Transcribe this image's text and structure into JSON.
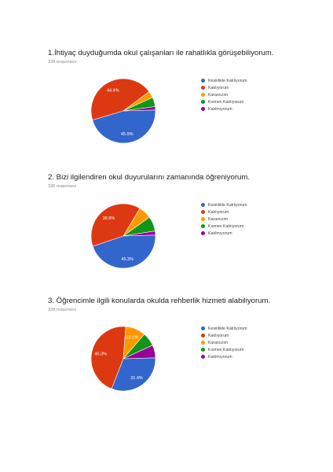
{
  "colors": [
    "#3366cc",
    "#dc3912",
    "#ff9900",
    "#109618",
    "#990099"
  ],
  "chart_data": [
    {
      "type": "pie",
      "title": "1.İhtiyaç duyduğumda okul çalışanları ile rahatlıkla görüşebiliyorum.",
      "responses": "338 responses",
      "categories": [
        "Kesinlikle Katılıyorum",
        "Katılıyorum",
        "Kararsızım",
        "Kısmen Katılıyorum",
        "Katılmıyorum"
      ],
      "values": [
        45.9,
        44.4,
        3.3,
        4.7,
        1.7
      ],
      "data_labels": [
        "45.9%",
        "44.4%",
        "",
        "",
        ""
      ],
      "legend_position": "right"
    },
    {
      "type": "pie",
      "title": "2. Bizi ilgilendiren okul duyurularını zamanında öğreniyorum.",
      "responses": "338 responses",
      "categories": [
        "Kesinlikle Katılıyorum",
        "Katılıyorum",
        "Kararsızım",
        "Kısmen Katılıyorum",
        "Katılmıyorum"
      ],
      "values": [
        45.3,
        38.8,
        6.5,
        7.4,
        2.0
      ],
      "data_labels": [
        "45.3%",
        "38.8%",
        "",
        "",
        ""
      ],
      "legend_position": "right"
    },
    {
      "type": "pie",
      "title": "3. Öğrencimle ilgili konularda okulda rehberlik hizmeti alabiliyorum.",
      "responses": "338 responses",
      "categories": [
        "Kesinlikle Katılıyorum",
        "Katılıyorum",
        "Kararsızım",
        "Kısmen Katılıyorum",
        "Katılmıyorum"
      ],
      "values": [
        31.4,
        45.3,
        10.1,
        6.8,
        6.4
      ],
      "data_labels": [
        "31.4%",
        "45.3%",
        "10.1%",
        "",
        ""
      ],
      "legend_position": "right"
    }
  ]
}
